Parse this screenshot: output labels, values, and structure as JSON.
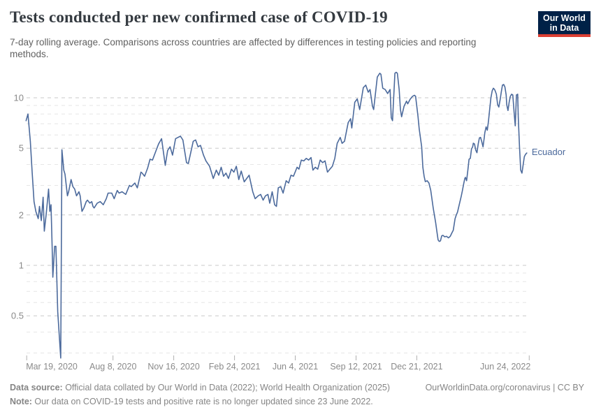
{
  "header": {
    "title": "Tests conducted per new confirmed case of COVID-19",
    "subtitle": "7-day rolling average. Comparisons across countries are affected by differences in testing policies and reporting methods.",
    "logo": {
      "line1": "Our World",
      "line2": "in Data"
    }
  },
  "footer": {
    "datasource_label": "Data source:",
    "datasource_text": " Official data collated by Our World in Data (2022); World Health Organization (2025)",
    "link_text": "OurWorldinData.org/coronavirus",
    "separator": " | ",
    "license": "CC BY",
    "note_label": "Note:",
    "note_text": " Our data on COVID-19 tests and positive rate is no longer updated since 23 June 2022."
  },
  "colors": {
    "line": "#4c6a9c",
    "title": "#343a40",
    "subtitle": "#616161",
    "axis_label": "#8a8a8a",
    "grid_major": "#c8c8c8",
    "grid_minor": "#e6e6e6",
    "tick": "#b0b0b0",
    "logo_bg": "#002147",
    "logo_accent": "#dc3f34",
    "footer_text": "#858585"
  },
  "chart_data": {
    "type": "line",
    "title": "Tests conducted per new confirmed case of COVID-19",
    "subtitle": "7-day rolling average. Comparisons across countries are affected by differences in testing policies and reporting methods.",
    "grid": true,
    "legend_position": "end-of-line",
    "y_axis": {
      "scale": "log",
      "major_ticks": [
        0.5,
        1,
        2,
        5,
        10
      ],
      "minor_ticks": [
        0.3,
        0.4,
        0.6,
        0.7,
        0.8,
        0.9,
        3,
        4,
        6,
        7,
        8,
        9
      ],
      "range": [
        0.28,
        14.7
      ]
    },
    "x_axis": {
      "unit": "days since 2020-03-13",
      "range": [
        0,
        833
      ],
      "ticks": [
        {
          "day": 6,
          "label": "Mar 19, 2020"
        },
        {
          "day": 148,
          "label": "Aug 8, 2020"
        },
        {
          "day": 248,
          "label": "Nov 16, 2020"
        },
        {
          "day": 348,
          "label": "Feb 24, 2021"
        },
        {
          "day": 448,
          "label": "Jun 4, 2021"
        },
        {
          "day": 548,
          "label": "Sep 12, 2021"
        },
        {
          "day": 648,
          "label": "Dec 21, 2021"
        },
        {
          "day": 833,
          "label": "Jun 24, 2022"
        }
      ]
    },
    "series": [
      {
        "name": "Ecuador",
        "color": "#4c6a9c",
        "points": [
          [
            5,
            7.3
          ],
          [
            8,
            8.0
          ],
          [
            12,
            5.5
          ],
          [
            15,
            3.6
          ],
          [
            18,
            2.4
          ],
          [
            21,
            2.1
          ],
          [
            25,
            1.9
          ],
          [
            27,
            2.25
          ],
          [
            30,
            1.85
          ],
          [
            33,
            2.55
          ],
          [
            35,
            1.6
          ],
          [
            38,
            2.0
          ],
          [
            42,
            2.85
          ],
          [
            44,
            2.1
          ],
          [
            46,
            2.3
          ],
          [
            48,
            1.25
          ],
          [
            49,
            0.85
          ],
          [
            52,
            1.3
          ],
          [
            54,
            1.3
          ],
          [
            57,
            0.53
          ],
          [
            60,
            0.36
          ],
          [
            62,
            0.28
          ],
          [
            64,
            4.9
          ],
          [
            67,
            3.7
          ],
          [
            69,
            3.5
          ],
          [
            73,
            2.6
          ],
          [
            75,
            2.75
          ],
          [
            79,
            3.25
          ],
          [
            82,
            2.95
          ],
          [
            85,
            2.85
          ],
          [
            88,
            2.6
          ],
          [
            92,
            2.75
          ],
          [
            94,
            2.6
          ],
          [
            97,
            2.1
          ],
          [
            100,
            2.2
          ],
          [
            104,
            2.4
          ],
          [
            106,
            2.45
          ],
          [
            110,
            2.35
          ],
          [
            113,
            2.4
          ],
          [
            115,
            2.25
          ],
          [
            117,
            2.2
          ],
          [
            122,
            2.35
          ],
          [
            127,
            2.4
          ],
          [
            132,
            2.3
          ],
          [
            137,
            2.5
          ],
          [
            140,
            2.7
          ],
          [
            146,
            2.7
          ],
          [
            150,
            2.5
          ],
          [
            155,
            2.8
          ],
          [
            158,
            2.7
          ],
          [
            163,
            2.75
          ],
          [
            169,
            2.65
          ],
          [
            175,
            3.0
          ],
          [
            178,
            2.95
          ],
          [
            184,
            3.1
          ],
          [
            188,
            2.9
          ],
          [
            194,
            3.6
          ],
          [
            196,
            3.55
          ],
          [
            200,
            3.4
          ],
          [
            205,
            3.8
          ],
          [
            209,
            4.3
          ],
          [
            213,
            4.25
          ],
          [
            219,
            4.85
          ],
          [
            223,
            5.3
          ],
          [
            228,
            5.7
          ],
          [
            234,
            3.95
          ],
          [
            238,
            4.85
          ],
          [
            242,
            5.1
          ],
          [
            246,
            4.55
          ],
          [
            251,
            5.7
          ],
          [
            259,
            5.9
          ],
          [
            263,
            5.6
          ],
          [
            269,
            4.1
          ],
          [
            272,
            4.05
          ],
          [
            280,
            5.5
          ],
          [
            284,
            5.6
          ],
          [
            288,
            5.1
          ],
          [
            292,
            5.2
          ],
          [
            297,
            4.55
          ],
          [
            301,
            4.2
          ],
          [
            307,
            3.9
          ],
          [
            313,
            3.3
          ],
          [
            318,
            3.7
          ],
          [
            322,
            3.45
          ],
          [
            326,
            3.85
          ],
          [
            330,
            3.4
          ],
          [
            334,
            3.55
          ],
          [
            338,
            3.3
          ],
          [
            343,
            3.75
          ],
          [
            347,
            3.6
          ],
          [
            351,
            3.9
          ],
          [
            355,
            3.25
          ],
          [
            359,
            3.65
          ],
          [
            364,
            3.15
          ],
          [
            368,
            3.3
          ],
          [
            372,
            3.45
          ],
          [
            378,
            2.75
          ],
          [
            382,
            2.5
          ],
          [
            387,
            2.6
          ],
          [
            391,
            2.65
          ],
          [
            395,
            2.45
          ],
          [
            399,
            2.6
          ],
          [
            403,
            2.65
          ],
          [
            406,
            2.35
          ],
          [
            410,
            2.75
          ],
          [
            414,
            2.3
          ],
          [
            417,
            2.25
          ],
          [
            420,
            2.9
          ],
          [
            424,
            2.95
          ],
          [
            428,
            2.7
          ],
          [
            433,
            3.2
          ],
          [
            437,
            3.1
          ],
          [
            441,
            3.45
          ],
          [
            445,
            3.4
          ],
          [
            451,
            3.85
          ],
          [
            454,
            3.75
          ],
          [
            458,
            4.25
          ],
          [
            462,
            4.2
          ],
          [
            466,
            4.35
          ],
          [
            470,
            4.25
          ],
          [
            474,
            4.4
          ],
          [
            477,
            3.7
          ],
          [
            481,
            3.85
          ],
          [
            485,
            3.75
          ],
          [
            489,
            4.25
          ],
          [
            493,
            4.1
          ],
          [
            497,
            4.2
          ],
          [
            501,
            3.6
          ],
          [
            505,
            3.75
          ],
          [
            509,
            3.9
          ],
          [
            513,
            4.35
          ],
          [
            517,
            5.35
          ],
          [
            522,
            5.8
          ],
          [
            525,
            5.35
          ],
          [
            529,
            5.5
          ],
          [
            535,
            7.1
          ],
          [
            539,
            7.5
          ],
          [
            541,
            6.6
          ],
          [
            546,
            9.4
          ],
          [
            550,
            9.85
          ],
          [
            554,
            8.5
          ],
          [
            560,
            11.5
          ],
          [
            564,
            11.9
          ],
          [
            568,
            10.8
          ],
          [
            571,
            11.2
          ],
          [
            575,
            8.9
          ],
          [
            577,
            8.5
          ],
          [
            583,
            13.3
          ],
          [
            587,
            14.0
          ],
          [
            589,
            13.8
          ],
          [
            592,
            11.4
          ],
          [
            596,
            11.2
          ],
          [
            600,
            10.6
          ],
          [
            604,
            11.2
          ],
          [
            606,
            7.6
          ],
          [
            608,
            7.3
          ],
          [
            612,
            14.0
          ],
          [
            614,
            14.2
          ],
          [
            616,
            14.0
          ],
          [
            619,
            11.2
          ],
          [
            621,
            8.5
          ],
          [
            623,
            7.7
          ],
          [
            627,
            8.9
          ],
          [
            631,
            9.55
          ],
          [
            633,
            9.2
          ],
          [
            637,
            9.8
          ],
          [
            641,
            10.2
          ],
          [
            644,
            10.35
          ],
          [
            646,
            10.2
          ],
          [
            650,
            7.7
          ],
          [
            652,
            6.5
          ],
          [
            656,
            5.1
          ],
          [
            658,
            3.85
          ],
          [
            660,
            3.4
          ],
          [
            662,
            3.16
          ],
          [
            665,
            3.2
          ],
          [
            668,
            3.1
          ],
          [
            671,
            2.8
          ],
          [
            675,
            2.2
          ],
          [
            679,
            1.8
          ],
          [
            681,
            1.6
          ],
          [
            683,
            1.42
          ],
          [
            685,
            1.39
          ],
          [
            687,
            1.4
          ],
          [
            689,
            1.5
          ],
          [
            691,
            1.51
          ],
          [
            694,
            1.48
          ],
          [
            697,
            1.49
          ],
          [
            700,
            1.46
          ],
          [
            703,
            1.49
          ],
          [
            706,
            1.57
          ],
          [
            708,
            1.62
          ],
          [
            711,
            1.9
          ],
          [
            713,
            2.0
          ],
          [
            715,
            2.08
          ],
          [
            719,
            2.4
          ],
          [
            721,
            2.57
          ],
          [
            723,
            2.78
          ],
          [
            725,
            3.05
          ],
          [
            727,
            3.3
          ],
          [
            728,
            3.35
          ],
          [
            730,
            3.2
          ],
          [
            732,
            3.7
          ],
          [
            734,
            4.3
          ],
          [
            736,
            4.35
          ],
          [
            738,
            4.95
          ],
          [
            740,
            5.1
          ],
          [
            741,
            5.36
          ],
          [
            743,
            5.3
          ],
          [
            745,
            4.87
          ],
          [
            747,
            4.7
          ],
          [
            749,
            5.3
          ],
          [
            751,
            5.76
          ],
          [
            753,
            5.8
          ],
          [
            755,
            5.45
          ],
          [
            757,
            5.1
          ],
          [
            759,
            5.8
          ],
          [
            760,
            6.2
          ],
          [
            762,
            6.7
          ],
          [
            764,
            6.4
          ],
          [
            766,
            7.26
          ],
          [
            768,
            8.6
          ],
          [
            770,
            10.0
          ],
          [
            772,
            11.0
          ],
          [
            774,
            11.4
          ],
          [
            776,
            11.2
          ],
          [
            777,
            11.0
          ],
          [
            779,
            10.5
          ],
          [
            781,
            9.1
          ],
          [
            783,
            8.8
          ],
          [
            785,
            9.7
          ],
          [
            787,
            10.8
          ],
          [
            789,
            11.9
          ],
          [
            791,
            12.0
          ],
          [
            793,
            11.6
          ],
          [
            795,
            10.4
          ],
          [
            796,
            9.1
          ],
          [
            798,
            8.4
          ],
          [
            800,
            9.4
          ],
          [
            802,
            10.2
          ],
          [
            804,
            10.5
          ],
          [
            806,
            10.4
          ],
          [
            808,
            8.25
          ],
          [
            810,
            6.8
          ],
          [
            812,
            10.4
          ],
          [
            814,
            10.5
          ],
          [
            815,
            7.7
          ],
          [
            817,
            5.1
          ],
          [
            819,
            3.7
          ],
          [
            821,
            3.55
          ],
          [
            825,
            4.45
          ],
          [
            827,
            4.6
          ],
          [
            829,
            4.68
          ]
        ]
      }
    ]
  }
}
